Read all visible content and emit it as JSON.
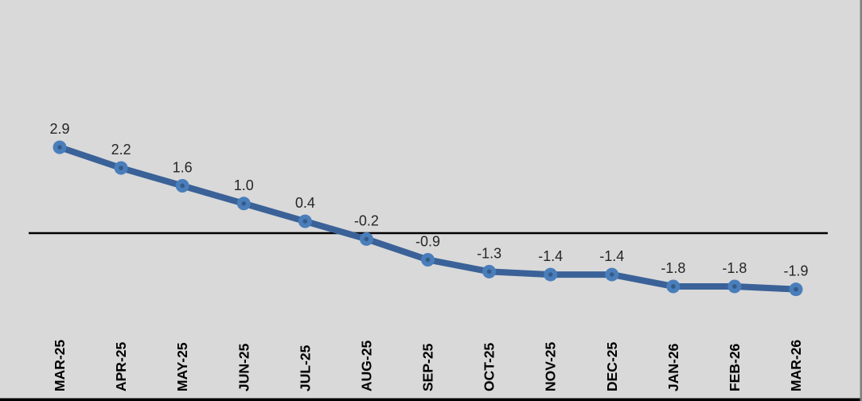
{
  "chart_data": {
    "type": "line",
    "title": "",
    "xlabel": "",
    "ylabel": "",
    "categories": [
      "MAR-25",
      "APR-25",
      "MAY-25",
      "JUN-25",
      "JUL-25",
      "AUG-25",
      "SEP-25",
      "OCT-25",
      "NOV-25",
      "DEC-25",
      "JAN-26",
      "FEB-26",
      "MAR-26"
    ],
    "values": [
      2.9,
      2.2,
      1.6,
      1.0,
      0.4,
      -0.2,
      -0.9,
      -1.3,
      -1.4,
      -1.4,
      -1.8,
      -1.8,
      -1.9
    ],
    "data_labels": [
      "2.9",
      "2.2",
      "1.6",
      "1.0",
      "0.4",
      "-0.2",
      "-0.9",
      "-1.3",
      "-1.4",
      "-1.4",
      "-1.8",
      "-1.8",
      "-1.9"
    ],
    "ylim": [
      -2.9,
      3.3
    ],
    "grid": false,
    "legend": "none",
    "zero_axis_line": true,
    "colors": {
      "background": "#d9d9d9",
      "line": "#3a6298",
      "marker_fill": "#4a7ebb",
      "marker_dot": "#345b88",
      "data_label": "#262626",
      "axis_label": "#000000",
      "zero_line": "#000000",
      "border_bottom": "#000000",
      "border_right": "#7f7f7f"
    }
  }
}
